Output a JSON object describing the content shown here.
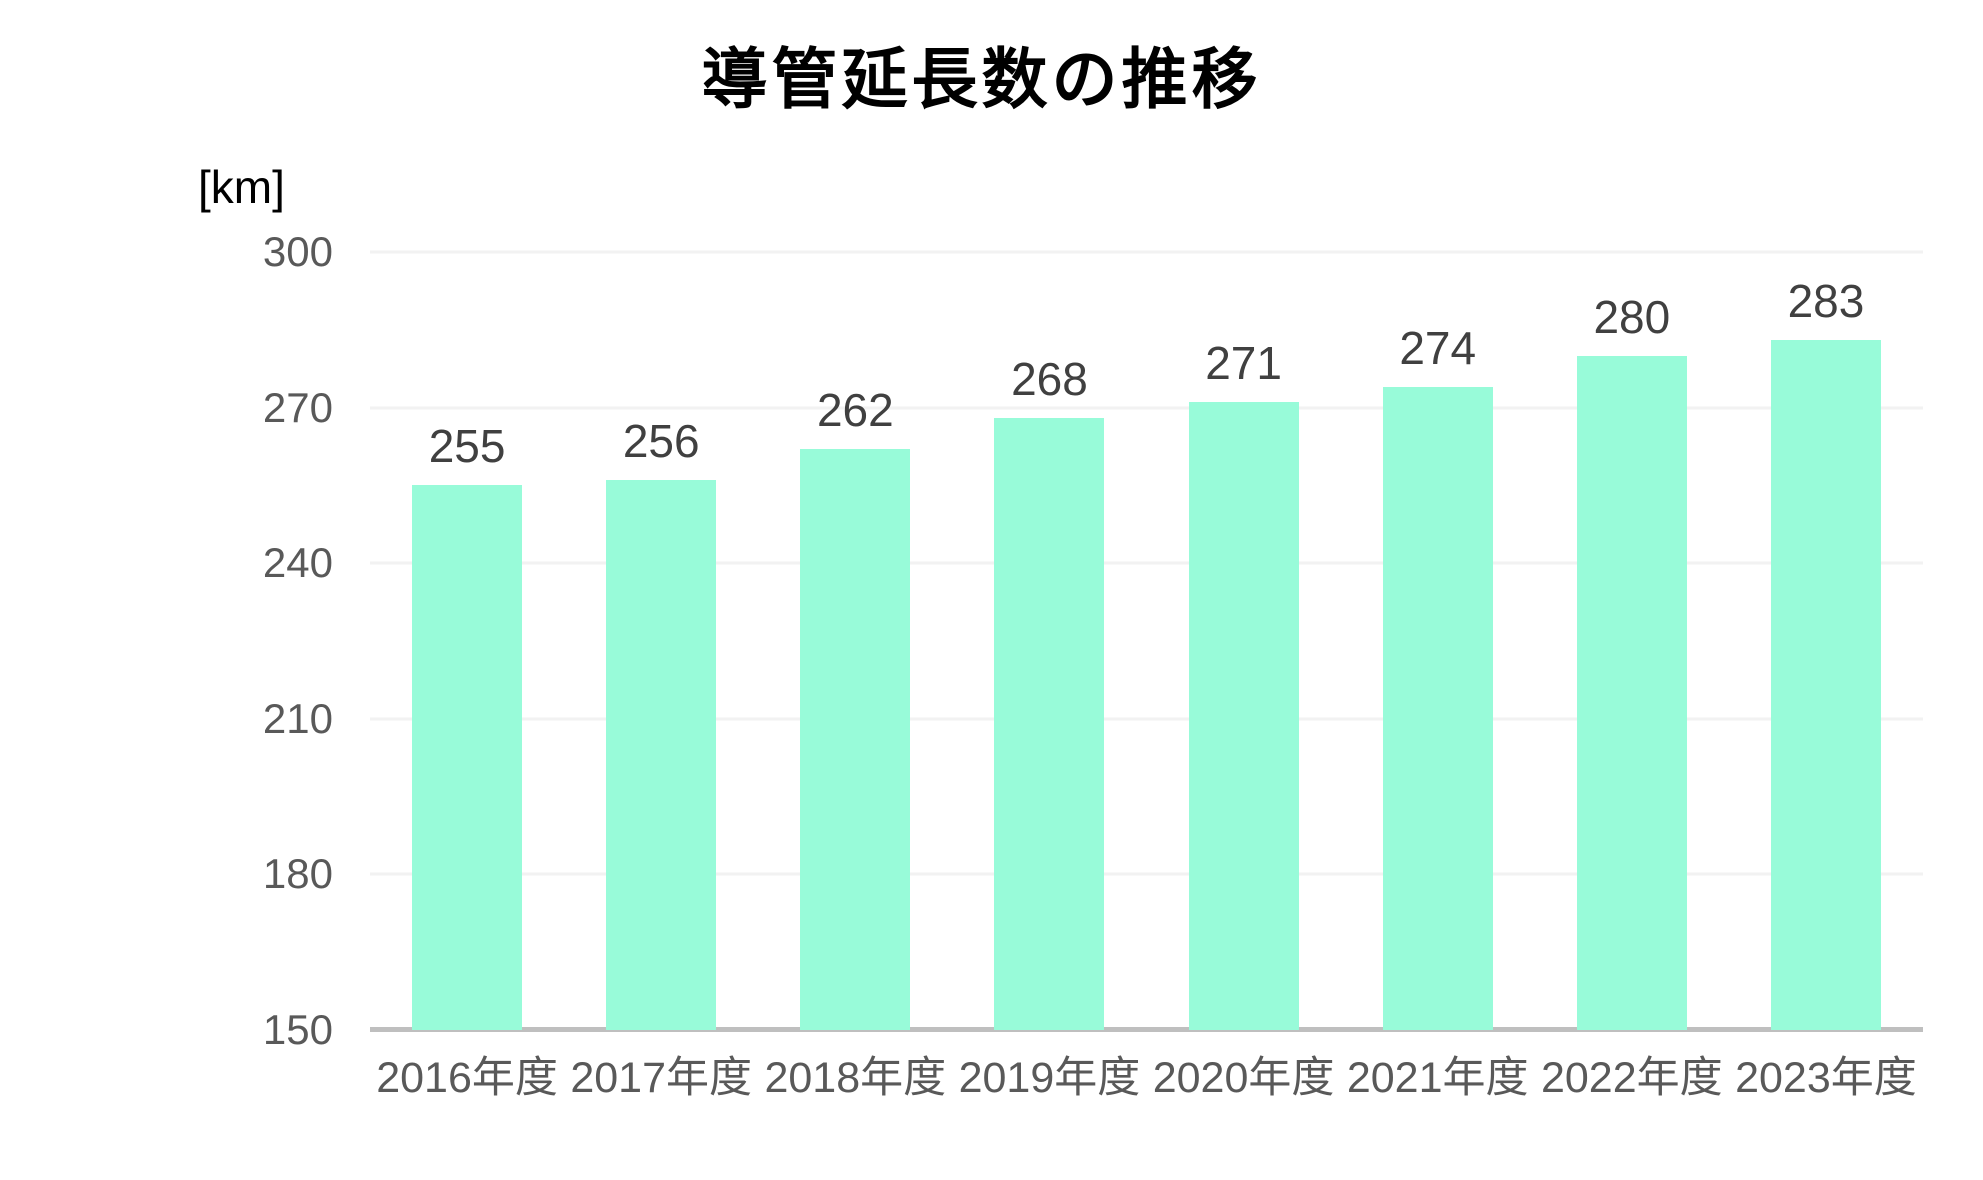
{
  "title": "導管延長数の推移",
  "axis": {
    "unit_label": "[km]"
  },
  "chart_data": {
    "type": "bar",
    "title": "導管延長数の推移",
    "ylabel": "[km]",
    "categories": [
      "2016年度",
      "2017年度",
      "2018年度",
      "2019年度",
      "2020年度",
      "2021年度",
      "2022年度",
      "2023年度"
    ],
    "values": [
      255,
      256,
      262,
      268,
      271,
      274,
      280,
      283
    ],
    "ylim": [
      150,
      300
    ],
    "yticks": [
      150,
      180,
      210,
      240,
      270,
      300
    ],
    "grid": true,
    "legend_position": "none",
    "bar_color": "#98FBD9"
  },
  "colors": {
    "background": "#FFFFFF",
    "bar": "#98FBD9",
    "title_text": "#000000",
    "tick_text": "#595959",
    "data_label_text": "#404040",
    "gridline": "#F2F2F2",
    "axis_line": "#BFBFBF"
  }
}
